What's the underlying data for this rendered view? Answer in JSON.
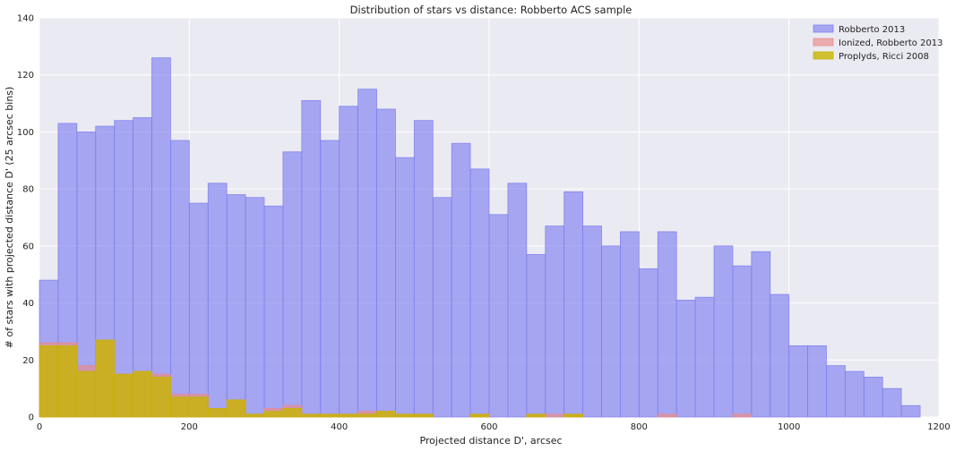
{
  "chart_data": {
    "type": "bar",
    "title": "Distribution of stars vs distance: Robberto ACS sample",
    "xlabel": "Projected distance D', arcsec",
    "ylabel": "# of stars with projected distance D' (25 arcsec bins)",
    "xlim": [
      0,
      1200
    ],
    "ylim": [
      0,
      140
    ],
    "xticks": [
      0,
      200,
      400,
      600,
      800,
      1000,
      1200
    ],
    "yticks": [
      0,
      20,
      40,
      60,
      80,
      100,
      120,
      140
    ],
    "bin_width": 25,
    "grid": true,
    "legend_position": "top-right",
    "series": [
      {
        "name": "Robberto 2013",
        "color": "#8080f0",
        "alpha": 0.65,
        "bin_starts": [
          0,
          25,
          50,
          75,
          100,
          125,
          150,
          175,
          200,
          225,
          250,
          275,
          300,
          325,
          350,
          375,
          400,
          425,
          450,
          475,
          500,
          525,
          550,
          575,
          600,
          625,
          650,
          675,
          700,
          725,
          750,
          775,
          800,
          825,
          850,
          875,
          900,
          925,
          950,
          975,
          1000,
          1025,
          1050,
          1075,
          1100,
          1125,
          1150
        ],
        "values": [
          48,
          103,
          100,
          102,
          104,
          105,
          126,
          97,
          75,
          82,
          78,
          77,
          74,
          93,
          111,
          97,
          109,
          115,
          108,
          91,
          104,
          77,
          96,
          87,
          71,
          82,
          57,
          67,
          79,
          67,
          60,
          65,
          52,
          65,
          41,
          42,
          60,
          53,
          58,
          43,
          25,
          25,
          18,
          16,
          14,
          10,
          4
        ]
      },
      {
        "name": "Ionized, Robberto 2013",
        "color": "#ea8a8a",
        "alpha": 0.65,
        "bin_starts": [
          0,
          25,
          50,
          75,
          100,
          125,
          150,
          175,
          200,
          225,
          250,
          275,
          300,
          325,
          350,
          375,
          400,
          425,
          450,
          475,
          500,
          575,
          650,
          675,
          700,
          825,
          925
        ],
        "values": [
          26,
          26,
          18,
          27,
          15,
          16,
          15,
          8,
          8,
          3,
          6,
          1,
          3,
          4,
          1,
          1,
          1,
          2,
          2,
          1,
          1,
          1,
          1,
          1,
          1,
          1,
          1
        ]
      },
      {
        "name": "Proplyds, Ricci 2008",
        "color": "#c8b400",
        "alpha": 0.8,
        "bin_starts": [
          0,
          25,
          50,
          75,
          100,
          125,
          150,
          175,
          200,
          225,
          250,
          275,
          300,
          325,
          350,
          375,
          400,
          425,
          450,
          475,
          500,
          575,
          650,
          700
        ],
        "values": [
          25,
          25,
          16,
          27,
          15,
          16,
          14,
          7,
          7,
          3,
          6,
          1,
          2,
          3,
          1,
          1,
          1,
          1,
          2,
          1,
          1,
          1,
          1,
          1
        ]
      }
    ]
  }
}
